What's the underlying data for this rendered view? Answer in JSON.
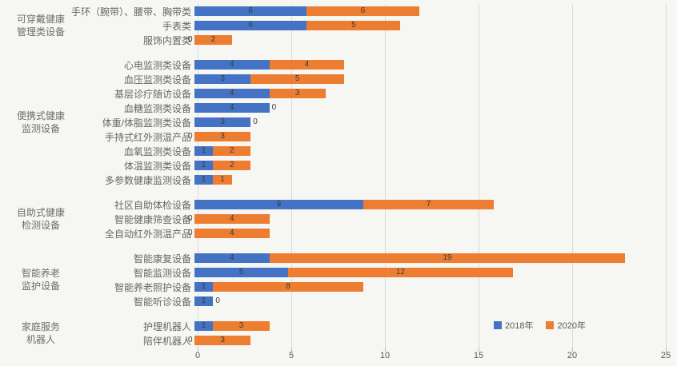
{
  "page": {
    "background": "#f6f6f3"
  },
  "chart_data": {
    "type": "bar",
    "orientation": "horizontal",
    "stacked": true,
    "title": "",
    "xlabel": "",
    "ylabel": "",
    "xlim": [
      0,
      25
    ],
    "x_ticks": [
      0,
      5,
      10,
      15,
      20,
      25
    ],
    "grid": true,
    "legend_position": "bottom-right",
    "series": [
      {
        "name": "2018年",
        "color": "#4472c4"
      },
      {
        "name": "2020年",
        "color": "#ed7d31"
      }
    ],
    "groups": [
      {
        "label": "可穿戴健康管理类设备",
        "label_lines": [
          "可穿戴健康",
          "管理类设备"
        ],
        "items": [
          {
            "label": "手环（腕带）、腰带、胸带类",
            "values": [
              6,
              6
            ]
          },
          {
            "label": "手表类",
            "values": [
              6,
              5
            ]
          },
          {
            "label": "服饰内置类",
            "values": [
              0,
              2
            ]
          }
        ]
      },
      {
        "label": "便携式健康监测设备",
        "label_lines": [
          "便携式健康",
          "监测设备"
        ],
        "items": [
          {
            "label": "心电监测类设备",
            "values": [
              4,
              4
            ]
          },
          {
            "label": "血压监测类设备",
            "values": [
              3,
              5
            ]
          },
          {
            "label": "基层诊疗随访设备",
            "values": [
              4,
              3
            ]
          },
          {
            "label": "血糖监测类设备",
            "values": [
              4,
              0
            ]
          },
          {
            "label": "体重/体脂监测类设备",
            "values": [
              3,
              0
            ]
          },
          {
            "label": "手持式红外测温产品",
            "values": [
              0,
              3
            ]
          },
          {
            "label": "血氧监测类设备",
            "values": [
              1,
              2
            ]
          },
          {
            "label": "体温监测类设备",
            "values": [
              1,
              2
            ]
          },
          {
            "label": "多参数健康监测设备",
            "values": [
              1,
              1
            ]
          }
        ]
      },
      {
        "label": "自助式健康检测设备",
        "label_lines": [
          "自助式健康",
          "检测设备"
        ],
        "items": [
          {
            "label": "社区自助体检设备",
            "values": [
              9,
              7
            ]
          },
          {
            "label": "智能健康筛查设备",
            "values": [
              0,
              4
            ]
          },
          {
            "label": "全自动红外测温产品",
            "values": [
              0,
              4
            ]
          }
        ]
      },
      {
        "label": "智能养老监护设备",
        "label_lines": [
          "智能养老",
          "监护设备"
        ],
        "items": [
          {
            "label": "智能康复设备",
            "values": [
              4,
              19
            ]
          },
          {
            "label": "智能监测设备",
            "values": [
              5,
              12
            ]
          },
          {
            "label": "智能养老照护设备",
            "values": [
              1,
              8
            ]
          },
          {
            "label": "智能听诊设备",
            "values": [
              1,
              0
            ]
          }
        ]
      },
      {
        "label": "家庭服务机器人",
        "label_lines": [
          "家庭服务",
          "机器人"
        ],
        "items": [
          {
            "label": "护理机器人",
            "values": [
              1,
              3
            ]
          },
          {
            "label": "陪伴机器人",
            "values": [
              0,
              3
            ]
          }
        ]
      }
    ]
  }
}
